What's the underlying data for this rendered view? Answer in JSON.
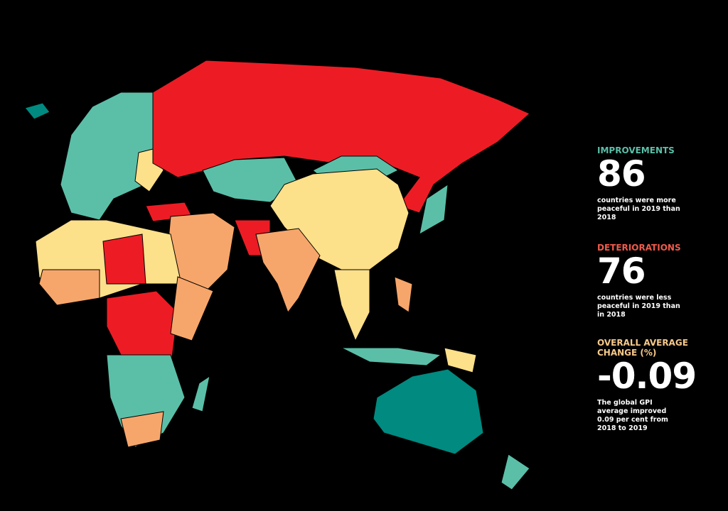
{
  "panel": {
    "improvements": {
      "label": "IMPROVEMENTS",
      "number": 86,
      "text": "countries were more peaceful in 2019 than 2018"
    },
    "deteriorations": {
      "label": "DETERIORATIONS",
      "number": 76,
      "text": "countries were less peaceful in 2019 than in 2018"
    },
    "overall": {
      "label": "OVERALL AVERAGE CHANGE (%)",
      "number": -0.09,
      "text": "The global GPI average improved 0.09 per cent from 2018 to 2019"
    }
  }
}
